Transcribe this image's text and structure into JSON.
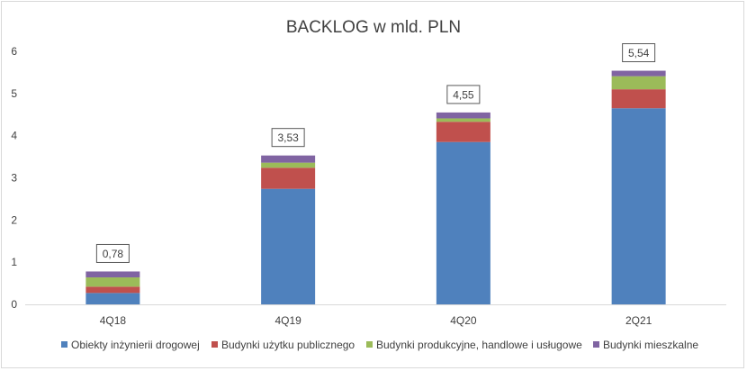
{
  "chart_data": {
    "type": "bar",
    "stacked": true,
    "title": "BACKLOG w mld. PLN",
    "xlabel": "",
    "ylabel": "",
    "categories": [
      "4Q18",
      "4Q19",
      "4Q20",
      "2Q21"
    ],
    "series": [
      {
        "name": "Obiekty inżynierii drogowej",
        "color": "#4f81bd",
        "values": [
          0.27,
          2.74,
          3.85,
          4.65
        ]
      },
      {
        "name": "Budynki użytku publicznego",
        "color": "#c0504d",
        "values": [
          0.15,
          0.5,
          0.48,
          0.45
        ]
      },
      {
        "name": "Budynki produkcyjne, handlowe i usługowe",
        "color": "#9bbb59",
        "values": [
          0.22,
          0.12,
          0.08,
          0.31
        ]
      },
      {
        "name": "Budynki mieszkalne",
        "color": "#8064a2",
        "values": [
          0.14,
          0.17,
          0.14,
          0.13
        ]
      }
    ],
    "totals": [
      0.78,
      3.53,
      4.55,
      5.54
    ],
    "total_labels": [
      "0,78",
      "3,53",
      "4,55",
      "5,54"
    ],
    "ylim": [
      0,
      6
    ],
    "yticks": [
      0,
      1,
      2,
      3,
      4,
      5,
      6
    ],
    "grid": false,
    "legend_position": "bottom"
  }
}
